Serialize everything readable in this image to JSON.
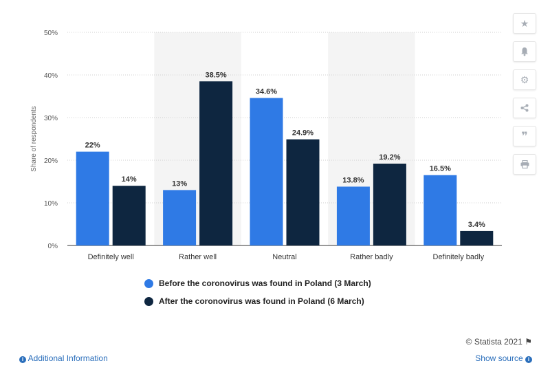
{
  "chart_data": {
    "type": "bar",
    "categories": [
      "Definitely well",
      "Rather well",
      "Neutral",
      "Rather badly",
      "Definitely badly"
    ],
    "series": [
      {
        "name": "Before the coronovirus was found in Poland (3 March)",
        "values": [
          22,
          13,
          34.6,
          13.8,
          16.5
        ],
        "labels": [
          "22%",
          "13%",
          "34.6%",
          "13.8%",
          "16.5%"
        ],
        "color": "#2f7ae5"
      },
      {
        "name": "After the coronovirus was found in Poland (6 March)",
        "values": [
          14,
          38.5,
          24.9,
          19.2,
          3.4
        ],
        "labels": [
          "14%",
          "38.5%",
          "24.9%",
          "19.2%",
          "3.4%"
        ],
        "color": "#0e2640"
      }
    ],
    "ylabel": "Share of respondents",
    "xlabel": "",
    "ylim": [
      0,
      50
    ],
    "yticks": [
      0,
      10,
      20,
      30,
      40,
      50
    ],
    "ytick_labels": [
      "0%",
      "10%",
      "20%",
      "30%",
      "40%",
      "50%"
    ],
    "grid": true,
    "legend_position": "bottom"
  },
  "legend": {
    "before_label": "Before the coronovirus was found in Poland (3 March)",
    "after_label": "After the coronovirus was found in Poland (6 March)"
  },
  "footer": {
    "credit": "© Statista 2021",
    "additional_info": "Additional Information",
    "show_source": "Show source"
  },
  "toolbar": {
    "icons": [
      "star-icon",
      "bell-icon",
      "gear-icon",
      "share-icon",
      "quote-icon",
      "print-icon"
    ]
  },
  "colors": {
    "before": "#2f7ae5",
    "after": "#0e2640",
    "band": "#f4f4f4",
    "link": "#2a6ebb"
  }
}
